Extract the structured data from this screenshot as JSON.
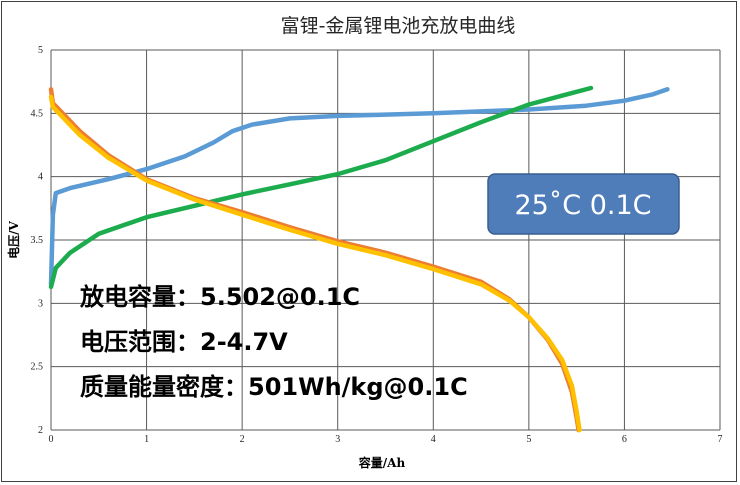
{
  "chart_data": {
    "type": "line",
    "title": "富锂-金属锂电池充放电曲线",
    "xlabel": "容量/Ah",
    "ylabel": "电压/V",
    "xlim": [
      0,
      7
    ],
    "ylim": [
      2,
      5
    ],
    "xticks": [
      "0",
      "1",
      "2",
      "3",
      "4",
      "5",
      "6",
      "7"
    ],
    "yticks": [
      "2",
      "2.5",
      "3",
      "3.5",
      "4",
      "4.5",
      "5"
    ],
    "grid": true,
    "colors": {
      "blue": "#5B9BD5",
      "green": "#1CAC4E",
      "orange": "#ED7D31",
      "yellow": "#FFC000",
      "badge": "#4F7DBA"
    },
    "series": [
      {
        "color": "#5B9BD5",
        "points": [
          [
            0,
            3.15
          ],
          [
            0.02,
            3.7
          ],
          [
            0.05,
            3.87
          ],
          [
            0.2,
            3.91
          ],
          [
            0.6,
            3.98
          ],
          [
            1.0,
            4.06
          ],
          [
            1.4,
            4.16
          ],
          [
            1.7,
            4.27
          ],
          [
            1.9,
            4.36
          ],
          [
            2.1,
            4.41
          ],
          [
            2.5,
            4.46
          ],
          [
            3.0,
            4.48
          ],
          [
            4.0,
            4.5
          ],
          [
            5.0,
            4.53
          ],
          [
            5.6,
            4.56
          ],
          [
            6.0,
            4.6
          ],
          [
            6.3,
            4.65
          ],
          [
            6.45,
            4.69
          ]
        ]
      },
      {
        "color": "#1CAC4E",
        "points": [
          [
            0,
            3.13
          ],
          [
            0.05,
            3.28
          ],
          [
            0.2,
            3.4
          ],
          [
            0.5,
            3.55
          ],
          [
            1.0,
            3.68
          ],
          [
            1.5,
            3.77
          ],
          [
            2.0,
            3.86
          ],
          [
            2.5,
            3.94
          ],
          [
            3.0,
            4.02
          ],
          [
            3.5,
            4.13
          ],
          [
            4.0,
            4.28
          ],
          [
            4.5,
            4.43
          ],
          [
            5.0,
            4.57
          ],
          [
            5.4,
            4.65
          ],
          [
            5.65,
            4.7
          ]
        ]
      },
      {
        "color": "#ED7D31",
        "points": [
          [
            0,
            4.69
          ],
          [
            0.02,
            4.58
          ],
          [
            0.3,
            4.36
          ],
          [
            0.6,
            4.17
          ],
          [
            1.0,
            3.98
          ],
          [
            1.5,
            3.83
          ],
          [
            2.0,
            3.72
          ],
          [
            2.5,
            3.6
          ],
          [
            3.0,
            3.49
          ],
          [
            3.5,
            3.4
          ],
          [
            4.0,
            3.29
          ],
          [
            4.5,
            3.17
          ],
          [
            4.8,
            3.03
          ],
          [
            5.0,
            2.89
          ],
          [
            5.2,
            2.71
          ],
          [
            5.35,
            2.52
          ],
          [
            5.45,
            2.3
          ],
          [
            5.5,
            2.1
          ],
          [
            5.52,
            2.0
          ]
        ]
      },
      {
        "color": "#FFC000",
        "points": [
          [
            0,
            4.63
          ],
          [
            0.02,
            4.55
          ],
          [
            0.3,
            4.33
          ],
          [
            0.6,
            4.15
          ],
          [
            1.0,
            3.97
          ],
          [
            1.5,
            3.82
          ],
          [
            2.0,
            3.7
          ],
          [
            2.5,
            3.58
          ],
          [
            3.0,
            3.47
          ],
          [
            3.5,
            3.38
          ],
          [
            4.0,
            3.27
          ],
          [
            4.5,
            3.15
          ],
          [
            4.8,
            3.02
          ],
          [
            5.0,
            2.89
          ],
          [
            5.2,
            2.72
          ],
          [
            5.35,
            2.55
          ],
          [
            5.45,
            2.35
          ],
          [
            5.5,
            2.15
          ],
          [
            5.53,
            2.0
          ]
        ]
      }
    ],
    "annotations": {
      "badge": "25˚C 0.1C",
      "lines": [
        "放电容量：5.502@0.1C",
        "电压范围：2-4.7V",
        "质量能量密度：501Wh/kg@0.1C"
      ]
    }
  }
}
